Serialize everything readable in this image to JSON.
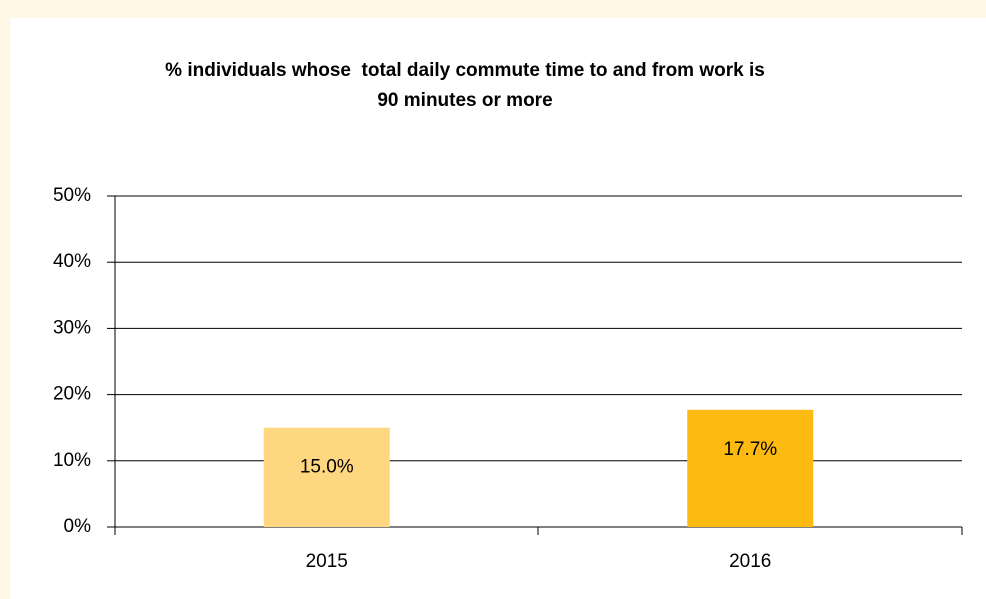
{
  "chart_data": {
    "type": "bar",
    "title": "% individuals whose  total daily commute time to and from work is 90 minutes or more",
    "categories": [
      "2015",
      "2016"
    ],
    "values": [
      15.0,
      17.7
    ],
    "value_labels": [
      "15.0%",
      "17.7%"
    ],
    "colors": [
      "#ffd780",
      "#fdbb11"
    ],
    "ylim": [
      0,
      50
    ],
    "yticks": [
      {
        "value": 0,
        "label": "0%"
      },
      {
        "value": 10,
        "label": "10%"
      },
      {
        "value": 20,
        "label": "20%"
      },
      {
        "value": 30,
        "label": "30%"
      },
      {
        "value": 40,
        "label": "40%"
      },
      {
        "value": 50,
        "label": "50%"
      }
    ],
    "grid": true
  }
}
